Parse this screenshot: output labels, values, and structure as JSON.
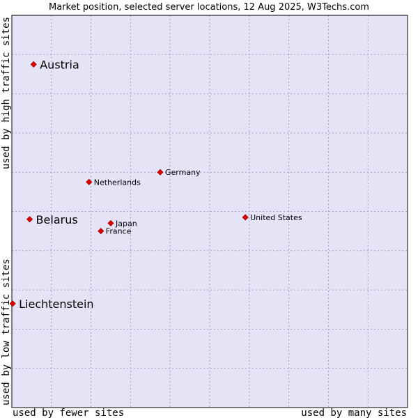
{
  "chart_data": {
    "type": "scatter",
    "title": "Market position, selected server locations, 12 Aug 2025, W3Techs.com",
    "xlabel_left": "used by fewer sites",
    "xlabel_right": "used by many sites",
    "ylabel_top": "used by high traffic sites",
    "ylabel_bottom": "used by low traffic sites",
    "xlim": [
      0,
      10
    ],
    "ylim": [
      0,
      10
    ],
    "grid": true,
    "colors": {
      "plot_background": "#e4e4f6",
      "grid": "#a0a0c8",
      "frame": "#000000",
      "marker": "#e00000"
    },
    "points": [
      {
        "name": "Austria",
        "x": 0.55,
        "y": 8.75,
        "emphasis": true
      },
      {
        "name": "Belarus",
        "x": 0.45,
        "y": 4.8,
        "emphasis": true
      },
      {
        "name": "Liechtenstein",
        "x": 0.02,
        "y": 2.65,
        "emphasis": true
      },
      {
        "name": "Netherlands",
        "x": 1.95,
        "y": 5.75,
        "emphasis": false
      },
      {
        "name": "Germany",
        "x": 3.75,
        "y": 6.0,
        "emphasis": false
      },
      {
        "name": "Japan",
        "x": 2.5,
        "y": 4.7,
        "emphasis": false
      },
      {
        "name": "France",
        "x": 2.25,
        "y": 4.5,
        "emphasis": false
      },
      {
        "name": "United States",
        "x": 5.9,
        "y": 4.85,
        "emphasis": false
      }
    ]
  }
}
